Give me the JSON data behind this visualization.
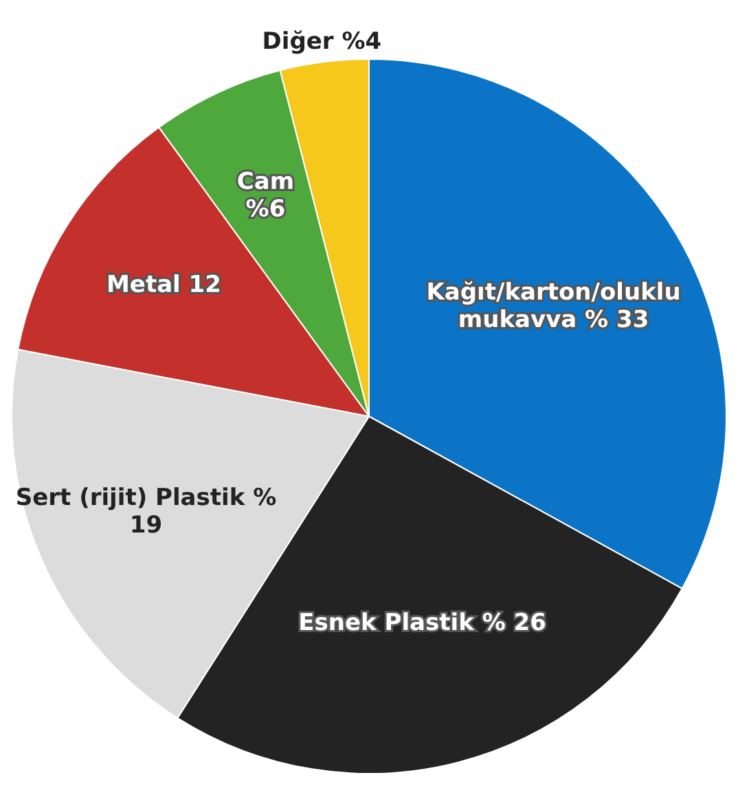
{
  "chart_data": {
    "type": "pie",
    "categories": [
      "Kağıt/karton/oluklu mukavva % 33",
      "Esnek Plastik % 26",
      "Sert (rijit) Plastik % 19",
      "Metal 12",
      "Cam %6",
      "Diğer %4"
    ],
    "values": [
      33,
      26,
      19,
      12,
      6,
      4
    ],
    "colors": [
      "#0b74c6",
      "#232323",
      "#dcdcdc",
      "#c4302b",
      "#4ea83c",
      "#f6c81b"
    ],
    "legend": false
  }
}
